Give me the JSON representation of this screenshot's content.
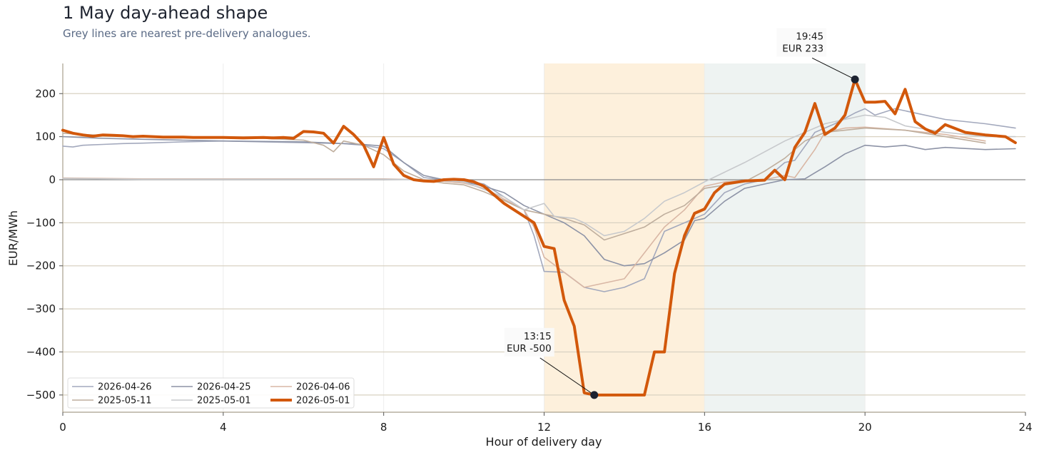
{
  "title": "1 May day-ahead shape",
  "subtitle": "Grey lines are nearest pre-delivery analogues.",
  "chart_data": {
    "type": "line",
    "xlabel": "Hour of delivery day",
    "ylabel": "EUR/MWh",
    "xlim": [
      0,
      24
    ],
    "ylim": [
      -540,
      270
    ],
    "xticks": [
      0,
      4,
      8,
      12,
      16,
      20,
      24
    ],
    "yticks": [
      -500,
      -400,
      -300,
      -200,
      -100,
      0,
      100,
      200
    ],
    "ytick_labels": [
      "−500",
      "−400",
      "−300",
      "−200",
      "−100",
      "0",
      "100",
      "200"
    ],
    "grid": "horizontal",
    "shaded_bands": [
      {
        "x": [
          12,
          16
        ],
        "color": "#fdf0dc"
      },
      {
        "x": [
          16,
          20
        ],
        "color": "#eef3f2"
      }
    ],
    "legend": {
      "placement": "lower-left",
      "columns": 3
    },
    "annotations": [
      {
        "x": 13.25,
        "y": -500,
        "time": "13:15",
        "value": "EUR -500"
      },
      {
        "x": 19.75,
        "y": 233,
        "time": "19:45",
        "value": "EUR 233"
      }
    ],
    "series": [
      {
        "name": "2026-04-26",
        "color": "#a3a9bd",
        "width": 1.6,
        "points": [
          [
            0,
            78
          ],
          [
            0.25,
            76
          ],
          [
            0.5,
            80
          ],
          [
            1,
            82
          ],
          [
            1.5,
            84
          ],
          [
            2,
            85
          ],
          [
            3,
            88
          ],
          [
            4,
            90
          ],
          [
            5,
            88
          ],
          [
            6,
            86
          ],
          [
            7,
            84
          ],
          [
            7.5,
            80
          ],
          [
            8,
            72
          ],
          [
            8.5,
            40
          ],
          [
            9,
            5
          ],
          [
            9.5,
            0
          ],
          [
            10,
            -2
          ],
          [
            10.5,
            -10
          ],
          [
            11,
            -40
          ],
          [
            11.5,
            -70
          ],
          [
            11.75,
            -130
          ],
          [
            12,
            -213
          ],
          [
            12.5,
            -215
          ],
          [
            13,
            -250
          ],
          [
            13.5,
            -260
          ],
          [
            14,
            -250
          ],
          [
            14.5,
            -230
          ],
          [
            15,
            -120
          ],
          [
            15.5,
            -100
          ],
          [
            16,
            -80
          ],
          [
            16.5,
            -30
          ],
          [
            17,
            -10
          ],
          [
            17.5,
            0
          ],
          [
            18,
            40
          ],
          [
            18.25,
            45
          ],
          [
            18.75,
            110
          ],
          [
            19.25,
            130
          ],
          [
            19.75,
            155
          ],
          [
            20,
            165
          ],
          [
            20.25,
            150
          ],
          [
            20.75,
            165
          ],
          [
            21,
            160
          ],
          [
            22,
            140
          ],
          [
            23,
            130
          ],
          [
            23.75,
            120
          ]
        ]
      },
      {
        "name": "2026-04-25",
        "color": "#8d93a6",
        "width": 1.6,
        "points": [
          [
            0,
            100
          ],
          [
            1,
            96
          ],
          [
            2,
            94
          ],
          [
            3,
            92
          ],
          [
            4,
            90
          ],
          [
            5,
            89
          ],
          [
            6,
            88
          ],
          [
            7,
            84
          ],
          [
            7.5,
            82
          ],
          [
            8,
            78
          ],
          [
            8.5,
            40
          ],
          [
            9,
            10
          ],
          [
            9.5,
            0
          ],
          [
            10,
            -5
          ],
          [
            10.5,
            -15
          ],
          [
            11,
            -30
          ],
          [
            11.5,
            -60
          ],
          [
            12,
            -80
          ],
          [
            12.5,
            -100
          ],
          [
            13,
            -130
          ],
          [
            13.5,
            -185
          ],
          [
            14,
            -200
          ],
          [
            14.5,
            -195
          ],
          [
            15,
            -170
          ],
          [
            15.5,
            -140
          ],
          [
            15.75,
            -95
          ],
          [
            16,
            -90
          ],
          [
            16.5,
            -50
          ],
          [
            17,
            -20
          ],
          [
            17.5,
            -10
          ],
          [
            18,
            0
          ],
          [
            18.5,
            2
          ],
          [
            19,
            30
          ],
          [
            19.5,
            60
          ],
          [
            20,
            80
          ],
          [
            20.5,
            76
          ],
          [
            21,
            80
          ],
          [
            21.5,
            70
          ],
          [
            22,
            75
          ],
          [
            23,
            70
          ],
          [
            23.75,
            72
          ]
        ]
      },
      {
        "name": "2026-04-06",
        "color": "#d9b7a5",
        "width": 1.6,
        "points": [
          [
            0,
            4
          ],
          [
            1,
            3
          ],
          [
            2,
            2
          ],
          [
            3,
            2
          ],
          [
            4,
            2
          ],
          [
            5,
            2
          ],
          [
            6,
            2
          ],
          [
            7,
            2
          ],
          [
            8,
            2
          ],
          [
            9,
            0
          ],
          [
            10,
            -8
          ],
          [
            10.5,
            -20
          ],
          [
            11,
            -45
          ],
          [
            11.5,
            -70
          ],
          [
            11.75,
            -110
          ],
          [
            12,
            -180
          ],
          [
            12.5,
            -215
          ],
          [
            13,
            -250
          ],
          [
            14,
            -230
          ],
          [
            14.5,
            -170
          ],
          [
            15,
            -110
          ],
          [
            15.5,
            -70
          ],
          [
            16,
            -15
          ],
          [
            16.5,
            -5
          ],
          [
            17,
            -2
          ],
          [
            17.5,
            0
          ],
          [
            18,
            10
          ],
          [
            18.25,
            5
          ],
          [
            18.75,
            70
          ],
          [
            19,
            110
          ],
          [
            19.5,
            120
          ],
          [
            20,
            122
          ],
          [
            21,
            115
          ],
          [
            22,
            105
          ],
          [
            23,
            90
          ]
        ]
      },
      {
        "name": "2025-05-11",
        "color": "#bfae9d",
        "width": 1.6,
        "points": [
          [
            0,
            108
          ],
          [
            0.5,
            105
          ],
          [
            1,
            103
          ],
          [
            2,
            100
          ],
          [
            3,
            98
          ],
          [
            4,
            97
          ],
          [
            5,
            96
          ],
          [
            6,
            92
          ],
          [
            6.5,
            80
          ],
          [
            6.75,
            65
          ],
          [
            7,
            90
          ],
          [
            7.5,
            80
          ],
          [
            8,
            58
          ],
          [
            8.5,
            20
          ],
          [
            9,
            0
          ],
          [
            9.5,
            -8
          ],
          [
            10,
            -12
          ],
          [
            10.5,
            -28
          ],
          [
            11,
            -48
          ],
          [
            11.5,
            -70
          ],
          [
            12,
            -80
          ],
          [
            12.5,
            -90
          ],
          [
            13,
            -105
          ],
          [
            13.5,
            -140
          ],
          [
            14,
            -125
          ],
          [
            14.5,
            -110
          ],
          [
            15,
            -80
          ],
          [
            15.5,
            -60
          ],
          [
            16,
            -20
          ],
          [
            17,
            -5
          ],
          [
            17.5,
            20
          ],
          [
            18,
            50
          ],
          [
            18.5,
            90
          ],
          [
            19,
            110
          ],
          [
            19.5,
            115
          ],
          [
            20,
            120
          ],
          [
            21,
            115
          ],
          [
            22,
            100
          ],
          [
            23,
            85
          ]
        ]
      },
      {
        "name": "2025-05-01",
        "color": "#c7c9cc",
        "width": 1.6,
        "points": [
          [
            0,
            3
          ],
          [
            1,
            2
          ],
          [
            2,
            1
          ],
          [
            3,
            1
          ],
          [
            4,
            1
          ],
          [
            5,
            1
          ],
          [
            6,
            1
          ],
          [
            7,
            1
          ],
          [
            8,
            1
          ],
          [
            9,
            0
          ],
          [
            10,
            -5
          ],
          [
            11,
            -40
          ],
          [
            11.5,
            -70
          ],
          [
            12,
            -55
          ],
          [
            12.25,
            -85
          ],
          [
            12.75,
            -90
          ],
          [
            13,
            -100
          ],
          [
            13.5,
            -130
          ],
          [
            14,
            -120
          ],
          [
            14.5,
            -90
          ],
          [
            15,
            -50
          ],
          [
            15.5,
            -30
          ],
          [
            16,
            -5
          ],
          [
            17,
            40
          ],
          [
            18,
            90
          ],
          [
            19,
            130
          ],
          [
            20,
            150
          ],
          [
            20.5,
            145
          ],
          [
            21,
            125
          ],
          [
            22,
            110
          ],
          [
            23,
            100
          ],
          [
            23.75,
            100
          ]
        ]
      },
      {
        "name": "2026-05-01",
        "color": "#d2580b",
        "width": 4,
        "points": [
          [
            0,
            115
          ],
          [
            0.25,
            108
          ],
          [
            0.5,
            104
          ],
          [
            0.75,
            101
          ],
          [
            1,
            104
          ],
          [
            1.25,
            103
          ],
          [
            1.5,
            102
          ],
          [
            1.75,
            100
          ],
          [
            2,
            101
          ],
          [
            2.25,
            100
          ],
          [
            2.5,
            99
          ],
          [
            3,
            99
          ],
          [
            3.25,
            98
          ],
          [
            3.5,
            98
          ],
          [
            4,
            98
          ],
          [
            4.5,
            97
          ],
          [
            5,
            98
          ],
          [
            5.25,
            97
          ],
          [
            5.5,
            98
          ],
          [
            5.75,
            96
          ],
          [
            6,
            112
          ],
          [
            6.25,
            111
          ],
          [
            6.5,
            108
          ],
          [
            6.75,
            85
          ],
          [
            7,
            124
          ],
          [
            7.25,
            105
          ],
          [
            7.5,
            80
          ],
          [
            7.75,
            30
          ],
          [
            8,
            98
          ],
          [
            8.25,
            36
          ],
          [
            8.5,
            10
          ],
          [
            8.75,
            0
          ],
          [
            9,
            -3
          ],
          [
            9.25,
            -4
          ],
          [
            9.5,
            0
          ],
          [
            9.75,
            1
          ],
          [
            10,
            0
          ],
          [
            10.25,
            -5
          ],
          [
            10.5,
            -15
          ],
          [
            10.75,
            -35
          ],
          [
            11,
            -55
          ],
          [
            11.5,
            -85
          ],
          [
            11.75,
            -100
          ],
          [
            12,
            -155
          ],
          [
            12.25,
            -160
          ],
          [
            12.5,
            -280
          ],
          [
            12.75,
            -340
          ],
          [
            13,
            -495
          ],
          [
            13.25,
            -500
          ],
          [
            13.5,
            -500
          ],
          [
            14,
            -500
          ],
          [
            14.5,
            -500
          ],
          [
            14.75,
            -400
          ],
          [
            15,
            -400
          ],
          [
            15.25,
            -218
          ],
          [
            15.5,
            -130
          ],
          [
            15.75,
            -78
          ],
          [
            16,
            -68
          ],
          [
            16.25,
            -30
          ],
          [
            16.5,
            -10
          ],
          [
            17,
            -3
          ],
          [
            17.5,
            -1
          ],
          [
            17.75,
            22
          ],
          [
            18,
            0
          ],
          [
            18.25,
            75
          ],
          [
            18.5,
            110
          ],
          [
            18.75,
            177
          ],
          [
            19,
            105
          ],
          [
            19.25,
            120
          ],
          [
            19.5,
            150
          ],
          [
            19.75,
            233
          ],
          [
            20,
            180
          ],
          [
            20.25,
            180
          ],
          [
            20.5,
            182
          ],
          [
            20.75,
            153
          ],
          [
            21,
            210
          ],
          [
            21.25,
            135
          ],
          [
            21.5,
            118
          ],
          [
            21.75,
            108
          ],
          [
            22,
            128
          ],
          [
            22.5,
            110
          ],
          [
            23,
            104
          ],
          [
            23.5,
            100
          ],
          [
            23.75,
            86
          ]
        ]
      }
    ]
  }
}
